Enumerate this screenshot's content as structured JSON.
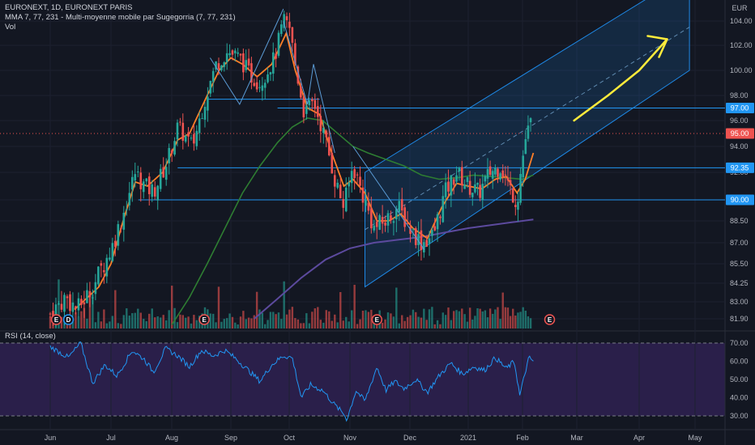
{
  "legend": {
    "symbol_line": "EURONEXT, 1D, EURONEXT PARIS",
    "ma_line": "MMA 7, 77, 231 - Multi-moyenne mobile par Sugegorria (7, 77, 231)",
    "vol_line": "Vol",
    "rsi_line": "RSI (14, close)"
  },
  "currency": "EUR",
  "colors": {
    "background": "#131722",
    "rsi_band": "#2a1f4a",
    "up": "#26a69a",
    "down": "#ef5350",
    "ma_fast": "#ff7f27",
    "ma_mid": "#2e7d32",
    "ma_slow": "#5c4a9e",
    "channel": "#1e88e5",
    "hline": "#2196f3",
    "arrow": "#ffeb3b",
    "rsi": "#2196f3"
  },
  "chart_data": {
    "type": "candlestick",
    "price_axis": {
      "ticks": [
        "104.00",
        "102.00",
        "100.00",
        "98.00",
        "96.00",
        "94.00",
        "92.00",
        "90.00",
        "88.50",
        "87.00",
        "85.50",
        "84.25",
        "83.00",
        "81.90"
      ],
      "tick_values": [
        104,
        102,
        100,
        98,
        96,
        94,
        92,
        90,
        88.5,
        87,
        85.5,
        84.25,
        83,
        81.9
      ]
    },
    "time_axis": [
      "Jun",
      "Jul",
      "Aug",
      "Sep",
      "Oct",
      "Nov",
      "Dec",
      "2021",
      "Feb",
      "Mar",
      "Apr",
      "May"
    ],
    "price_badges": [
      {
        "label": "97.00",
        "value": 97,
        "color": "#2196f3"
      },
      {
        "label": "95.00",
        "value": 95,
        "color": "#ef5350"
      },
      {
        "label": "92.35",
        "value": 92.35,
        "color": "#2196f3"
      },
      {
        "label": "90.00",
        "value": 90,
        "color": "#2196f3"
      }
    ],
    "close_anchors": [
      {
        "month": 0.0,
        "close": 82.2
      },
      {
        "month": 0.25,
        "close": 83.3
      },
      {
        "month": 0.45,
        "close": 82.5
      },
      {
        "month": 0.7,
        "close": 84.0
      },
      {
        "month": 1.0,
        "close": 86.5
      },
      {
        "month": 1.2,
        "close": 89.0
      },
      {
        "month": 1.4,
        "close": 92.0
      },
      {
        "month": 1.55,
        "close": 91.0
      },
      {
        "month": 1.7,
        "close": 90.6
      },
      {
        "month": 1.9,
        "close": 92.5
      },
      {
        "month": 2.1,
        "close": 95.5
      },
      {
        "month": 2.35,
        "close": 94.0
      },
      {
        "month": 2.55,
        "close": 97.5
      },
      {
        "month": 2.75,
        "close": 100.5
      },
      {
        "month": 2.95,
        "close": 101.5
      },
      {
        "month": 3.15,
        "close": 101.0
      },
      {
        "month": 3.35,
        "close": 99.5
      },
      {
        "month": 3.5,
        "close": 99.0
      },
      {
        "month": 3.75,
        "close": 101.0
      },
      {
        "month": 3.9,
        "close": 104.0
      },
      {
        "month": 4.0,
        "close": 103.5
      },
      {
        "month": 4.1,
        "close": 100.5
      },
      {
        "month": 4.25,
        "close": 96.5
      },
      {
        "month": 4.4,
        "close": 97.5
      },
      {
        "month": 4.6,
        "close": 94.5
      },
      {
        "month": 4.75,
        "close": 91.5
      },
      {
        "month": 4.9,
        "close": 89.5
      },
      {
        "month": 5.05,
        "close": 92.5
      },
      {
        "month": 5.2,
        "close": 90.5
      },
      {
        "month": 5.4,
        "close": 88.0
      },
      {
        "month": 5.6,
        "close": 88.5
      },
      {
        "month": 5.8,
        "close": 89.5
      },
      {
        "month": 6.0,
        "close": 88.0
      },
      {
        "month": 6.2,
        "close": 87.0
      },
      {
        "month": 6.4,
        "close": 87.5
      },
      {
        "month": 6.6,
        "close": 90.5
      },
      {
        "month": 6.8,
        "close": 92.0
      },
      {
        "month": 7.0,
        "close": 91.0
      },
      {
        "month": 7.2,
        "close": 90.5
      },
      {
        "month": 7.4,
        "close": 92.0
      },
      {
        "month": 7.6,
        "close": 92.5
      },
      {
        "month": 7.75,
        "close": 91.0
      },
      {
        "month": 7.9,
        "close": 89.8
      },
      {
        "month": 7.95,
        "close": 91.5
      },
      {
        "month": 8.05,
        "close": 94.5
      },
      {
        "month": 8.15,
        "close": 95.8
      }
    ],
    "ma_fast": [
      {
        "month": 0.4,
        "close": 82.5
      },
      {
        "month": 0.8,
        "close": 84.0
      },
      {
        "month": 1.0,
        "close": 85.5
      },
      {
        "month": 1.2,
        "close": 88.5
      },
      {
        "month": 1.4,
        "close": 91.3
      },
      {
        "month": 1.6,
        "close": 91.0
      },
      {
        "month": 1.85,
        "close": 92.0
      },
      {
        "month": 2.1,
        "close": 94.5
      },
      {
        "month": 2.3,
        "close": 95.0
      },
      {
        "month": 2.6,
        "close": 98.0
      },
      {
        "month": 2.8,
        "close": 100.0
      },
      {
        "month": 3.0,
        "close": 101.0
      },
      {
        "month": 3.2,
        "close": 100.5
      },
      {
        "month": 3.45,
        "close": 99.5
      },
      {
        "month": 3.7,
        "close": 100.5
      },
      {
        "month": 3.95,
        "close": 103.0
      },
      {
        "month": 4.1,
        "close": 100.0
      },
      {
        "month": 4.3,
        "close": 97.0
      },
      {
        "month": 4.5,
        "close": 96.5
      },
      {
        "month": 4.7,
        "close": 93.5
      },
      {
        "month": 4.9,
        "close": 91.0
      },
      {
        "month": 5.05,
        "close": 91.5
      },
      {
        "month": 5.25,
        "close": 90.5
      },
      {
        "month": 5.45,
        "close": 88.5
      },
      {
        "month": 5.65,
        "close": 88.5
      },
      {
        "month": 5.85,
        "close": 89.0
      },
      {
        "month": 6.05,
        "close": 88.0
      },
      {
        "month": 6.3,
        "close": 87.3
      },
      {
        "month": 6.55,
        "close": 89.5
      },
      {
        "month": 6.8,
        "close": 91.2
      },
      {
        "month": 7.0,
        "close": 91.0
      },
      {
        "month": 7.25,
        "close": 90.8
      },
      {
        "month": 7.5,
        "close": 91.5
      },
      {
        "month": 7.7,
        "close": 91.7
      },
      {
        "month": 7.9,
        "close": 90.5
      },
      {
        "month": 8.05,
        "close": 91.5
      },
      {
        "month": 8.2,
        "close": 93.5
      }
    ],
    "ma_mid": [
      {
        "month": 2.0,
        "close": 81.5
      },
      {
        "month": 2.3,
        "close": 83.3
      },
      {
        "month": 2.6,
        "close": 85.5
      },
      {
        "month": 2.9,
        "close": 88.0
      },
      {
        "month": 3.2,
        "close": 90.5
      },
      {
        "month": 3.5,
        "close": 92.5
      },
      {
        "month": 3.8,
        "close": 94.3
      },
      {
        "month": 4.05,
        "close": 95.5
      },
      {
        "month": 4.3,
        "close": 96.2
      },
      {
        "month": 4.55,
        "close": 96.0
      },
      {
        "month": 4.8,
        "close": 95.0
      },
      {
        "month": 5.05,
        "close": 94.0
      },
      {
        "month": 5.3,
        "close": 93.5
      },
      {
        "month": 5.6,
        "close": 93.0
      },
      {
        "month": 5.9,
        "close": 92.5
      },
      {
        "month": 6.2,
        "close": 91.8
      },
      {
        "month": 6.5,
        "close": 91.5
      },
      {
        "month": 6.8,
        "close": 91.6
      },
      {
        "month": 7.1,
        "close": 91.8
      },
      {
        "month": 7.4,
        "close": 91.7
      },
      {
        "month": 7.7,
        "close": 91.6
      },
      {
        "month": 8.0,
        "close": 91.5
      },
      {
        "month": 8.2,
        "close": 91.8
      }
    ],
    "ma_slow": [
      {
        "month": 3.4,
        "close": 81.9
      },
      {
        "month": 3.8,
        "close": 83.2
      },
      {
        "month": 4.2,
        "close": 84.6
      },
      {
        "month": 4.6,
        "close": 85.8
      },
      {
        "month": 5.0,
        "close": 86.6
      },
      {
        "month": 5.4,
        "close": 87.0
      },
      {
        "month": 5.8,
        "close": 87.2
      },
      {
        "month": 6.2,
        "close": 87.4
      },
      {
        "month": 6.6,
        "close": 87.7
      },
      {
        "month": 7.0,
        "close": 88.0
      },
      {
        "month": 7.4,
        "close": 88.2
      },
      {
        "month": 7.8,
        "close": 88.4
      },
      {
        "month": 8.2,
        "close": 88.6
      }
    ],
    "horizontal_lines": [
      {
        "value": 97.0,
        "from_month": 3.8,
        "to_month": 12.0
      },
      {
        "value": 97.7,
        "from_month": 2.6,
        "to_month": 4.5
      },
      {
        "value": 92.35,
        "from_month": 2.1,
        "to_month": 12.0
      },
      {
        "value": 90.0,
        "from_month": 1.45,
        "to_month": 12.0
      }
    ],
    "channel": {
      "lower": [
        {
          "month": 5.25,
          "close": 84.0
        },
        {
          "month": 10.9,
          "close": 100.0
        }
      ],
      "upper_offset": 8.0,
      "mid_end": {
        "month": 10.9,
        "close": 103.5
      }
    },
    "trend_lines": [
      [
        {
          "month": 2.65,
          "close": 101.0
        },
        {
          "month": 3.15,
          "close": 97.3
        },
        {
          "month": 3.9,
          "close": 105.0
        }
      ],
      [
        {
          "month": 3.9,
          "close": 104.0
        },
        {
          "month": 4.3,
          "close": 97.3
        },
        {
          "month": 4.4,
          "close": 100.5
        },
        {
          "month": 4.75,
          "close": 93.5
        }
      ],
      [
        {
          "month": 5.05,
          "close": 94.0
        },
        {
          "month": 6.25,
          "close": 86.5
        }
      ]
    ],
    "arrow": [
      {
        "month": 8.95,
        "close": 96.0
      },
      {
        "month": 9.5,
        "close": 98.0
      },
      {
        "month": 10.0,
        "close": 100.0
      },
      {
        "month": 10.5,
        "close": 102.5
      }
    ],
    "events": [
      {
        "month": 0.1,
        "label": "E",
        "color": "#ef5350"
      },
      {
        "month": 0.3,
        "label": "D",
        "color": "#2196f3"
      },
      {
        "month": 2.55,
        "label": "E",
        "color": "#ef5350"
      },
      {
        "month": 5.45,
        "label": "E",
        "color": "#ef5350"
      },
      {
        "month": 8.5,
        "label": "E",
        "color": "#ef5350"
      }
    ],
    "rsi": {
      "ticks": [
        "70.00",
        "60.00",
        "50.00",
        "40.00",
        "30.00"
      ],
      "tick_values": [
        70,
        60,
        50,
        40,
        30
      ],
      "upper": 70,
      "lower": 30,
      "anchors": [
        {
          "month": 0.0,
          "close": 68
        },
        {
          "month": 0.3,
          "close": 62
        },
        {
          "month": 0.5,
          "close": 70
        },
        {
          "month": 0.7,
          "close": 48
        },
        {
          "month": 0.9,
          "close": 58
        },
        {
          "month": 1.1,
          "close": 52
        },
        {
          "month": 1.35,
          "close": 66
        },
        {
          "month": 1.55,
          "close": 61
        },
        {
          "month": 1.7,
          "close": 54
        },
        {
          "month": 1.9,
          "close": 67
        },
        {
          "month": 2.1,
          "close": 63
        },
        {
          "month": 2.3,
          "close": 57
        },
        {
          "month": 2.5,
          "close": 66
        },
        {
          "month": 2.7,
          "close": 63
        },
        {
          "month": 2.9,
          "close": 66
        },
        {
          "month": 3.1,
          "close": 61
        },
        {
          "month": 3.3,
          "close": 55
        },
        {
          "month": 3.5,
          "close": 49
        },
        {
          "month": 3.7,
          "close": 58
        },
        {
          "month": 3.9,
          "close": 63
        },
        {
          "month": 4.05,
          "close": 62
        },
        {
          "month": 4.2,
          "close": 40
        },
        {
          "month": 4.35,
          "close": 47
        },
        {
          "month": 4.55,
          "close": 44
        },
        {
          "month": 4.75,
          "close": 36
        },
        {
          "month": 4.9,
          "close": 31
        },
        {
          "month": 4.95,
          "close": 28
        },
        {
          "month": 5.1,
          "close": 44
        },
        {
          "month": 5.25,
          "close": 38
        },
        {
          "month": 5.45,
          "close": 57
        },
        {
          "month": 5.6,
          "close": 44
        },
        {
          "month": 5.75,
          "close": 49
        },
        {
          "month": 5.9,
          "close": 45
        },
        {
          "month": 6.1,
          "close": 50
        },
        {
          "month": 6.3,
          "close": 43
        },
        {
          "month": 6.5,
          "close": 52
        },
        {
          "month": 6.7,
          "close": 59
        },
        {
          "month": 6.9,
          "close": 53
        },
        {
          "month": 7.1,
          "close": 57
        },
        {
          "month": 7.3,
          "close": 55
        },
        {
          "month": 7.5,
          "close": 62
        },
        {
          "month": 7.7,
          "close": 56
        },
        {
          "month": 7.85,
          "close": 60
        },
        {
          "month": 7.95,
          "close": 41
        },
        {
          "month": 8.05,
          "close": 54
        },
        {
          "month": 8.12,
          "close": 62
        },
        {
          "month": 8.2,
          "close": 60
        }
      ]
    }
  }
}
